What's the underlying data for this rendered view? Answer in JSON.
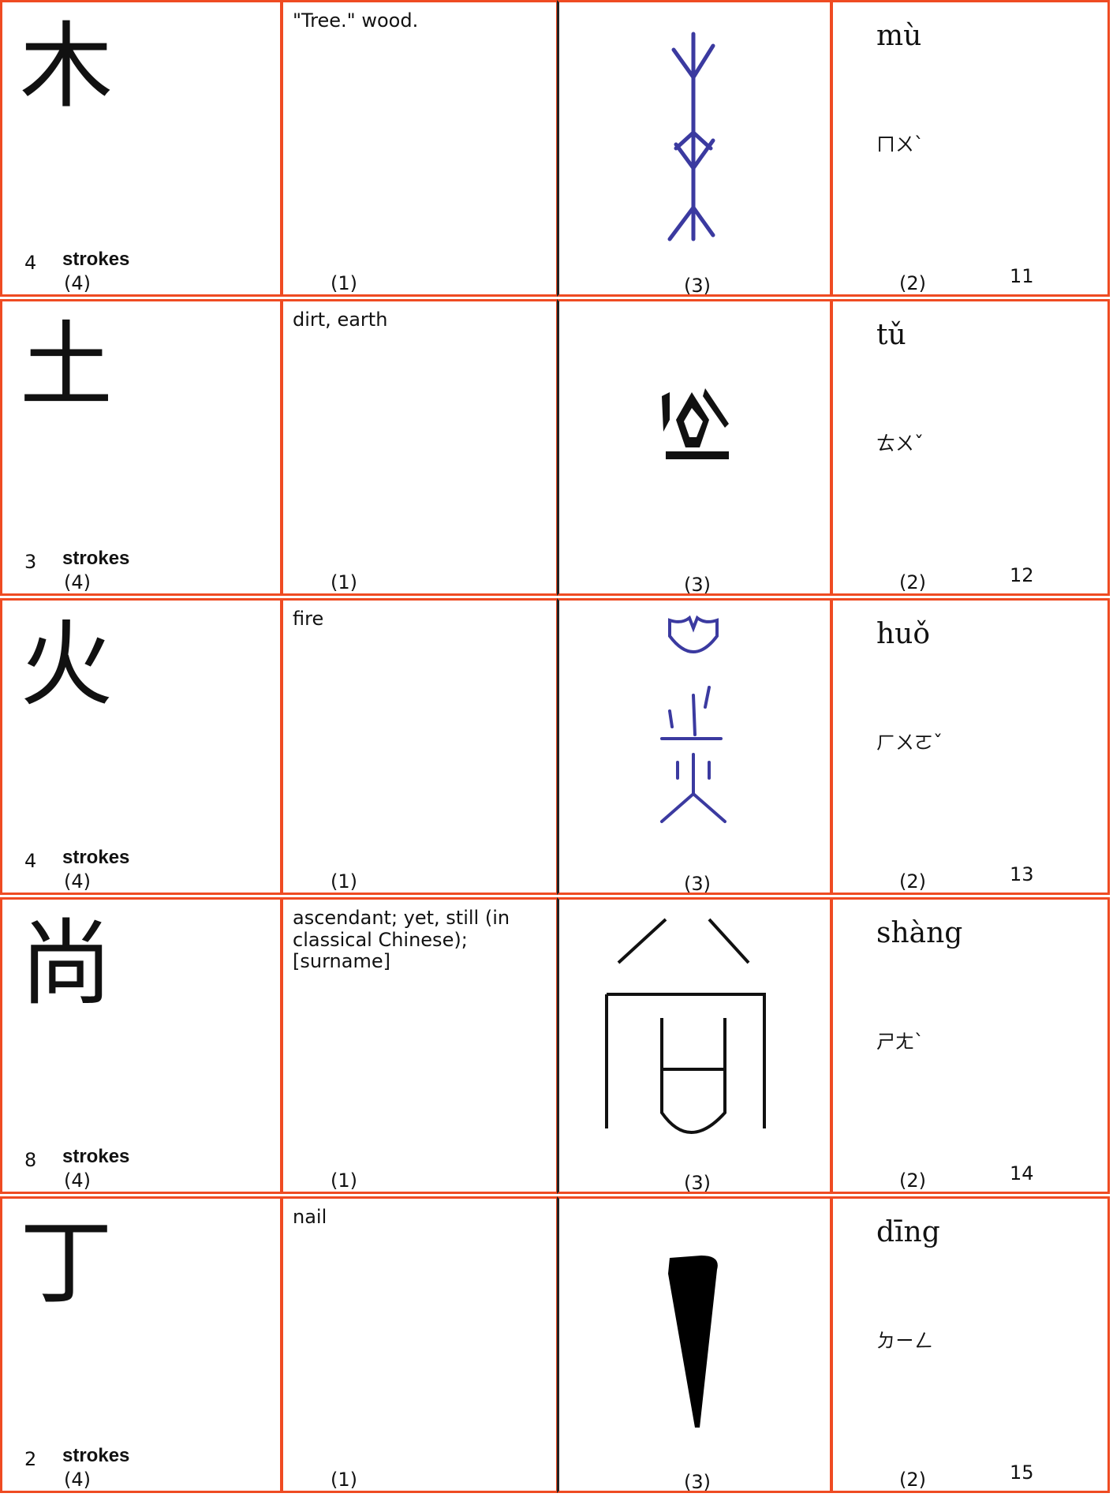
{
  "rows": [
    {
      "character": "木",
      "stroke_count": "4",
      "strokes_label": "strokes",
      "ref_4": "(4)",
      "definition": "\"Tree.\"  wood.",
      "ref_1": "(1)",
      "ref_3": "(3)",
      "pinyin": "mù",
      "zhuyin": "ㄇㄨˋ",
      "ref_2": "(2)",
      "number": "11"
    },
    {
      "character": "土",
      "stroke_count": "3",
      "strokes_label": "strokes",
      "ref_4": "(4)",
      "definition": "dirt, earth",
      "ref_1": "(1)",
      "ref_3": "(3)",
      "pinyin": "tǔ",
      "zhuyin": "ㄊㄨˇ",
      "ref_2": "(2)",
      "number": "12"
    },
    {
      "character": "火",
      "stroke_count": "4",
      "strokes_label": "strokes",
      "ref_4": "(4)",
      "definition": "fire",
      "ref_1": "(1)",
      "ref_3": "(3)",
      "pinyin": "huǒ",
      "zhuyin": "ㄏㄨㄛˇ",
      "ref_2": "(2)",
      "number": "13"
    },
    {
      "character": "尚",
      "stroke_count": "8",
      "strokes_label": "strokes",
      "ref_4": "(4)",
      "definition": "ascendant; yet, still (in classical Chinese); [surname]",
      "ref_1": "(1)",
      "ref_3": "(3)",
      "pinyin": "shàng",
      "zhuyin": "ㄕㄤˋ",
      "ref_2": "(2)",
      "number": "14"
    },
    {
      "character": "丁",
      "stroke_count": "2",
      "strokes_label": "strokes",
      "ref_4": "(4)",
      "definition": "nail",
      "ref_1": "(1)",
      "ref_3": "(3)",
      "pinyin": "dīng",
      "zhuyin": "ㄉㄧㄥ",
      "ref_2": "(2)",
      "number": "15"
    }
  ]
}
